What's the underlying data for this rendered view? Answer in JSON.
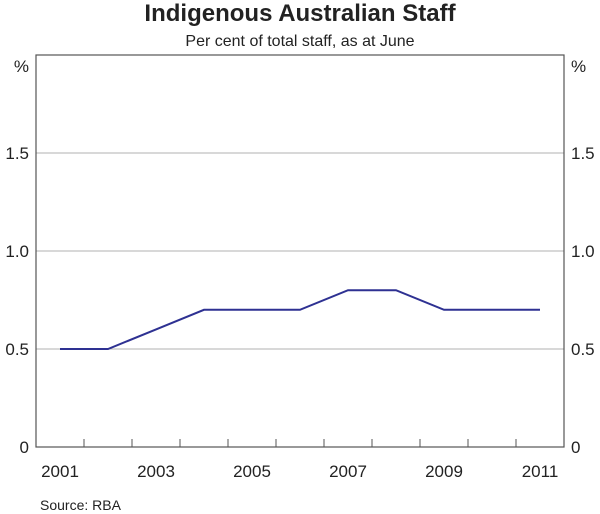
{
  "chart_data": {
    "type": "line",
    "title": "Indigenous Australian Staff",
    "subtitle": "Per cent of total staff, as at June",
    "ylabel_left": "%",
    "ylabel_right": "%",
    "x": [
      2001,
      2002,
      2003,
      2004,
      2005,
      2006,
      2007,
      2008,
      2009,
      2010,
      2011
    ],
    "series": [
      {
        "values": [
          0.5,
          0.5,
          0.6,
          0.7,
          0.7,
          0.7,
          0.8,
          0.8,
          0.7,
          0.7,
          0.7
        ],
        "color": "#2e3192"
      }
    ],
    "ylim": [
      0,
      2.0
    ],
    "yticks": [
      "0",
      "0.5",
      "1.0",
      "1.5"
    ],
    "xtick_labels": [
      "2001",
      "2003",
      "2005",
      "2007",
      "2009",
      "2011"
    ],
    "grid": true,
    "source": "Source: RBA"
  }
}
